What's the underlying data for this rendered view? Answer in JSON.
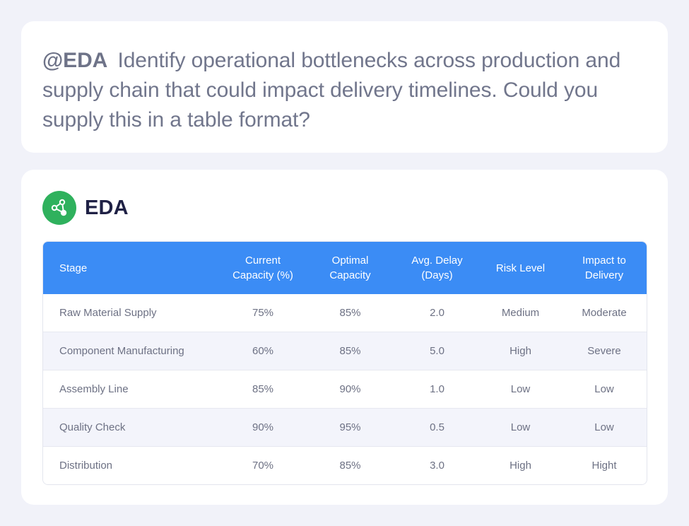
{
  "prompt": {
    "mention": "@EDA",
    "text": "Identify operational bottlenecks across production and supply chain that could impact delivery timelines. Could you supply this in a table format?"
  },
  "agent": {
    "name": "EDA",
    "icon": "network-nodes-icon",
    "color": "#2fb15d"
  },
  "table": {
    "header_color": "#3b8cf5",
    "headers": {
      "stage": "Stage",
      "current_line1": "Current",
      "current_line2": "Capacity (%)",
      "optimal_line1": "Optimal",
      "optimal_line2": "Capacity",
      "delay_line1": "Avg. Delay",
      "delay_line2": "(Days)",
      "risk": "Risk Level",
      "impact_line1": "Impact to",
      "impact_line2": "Delivery"
    },
    "rows": [
      {
        "stage": "Raw Material Supply",
        "current": "75%",
        "optimal": "85%",
        "delay": "2.0",
        "risk": "Medium",
        "impact": "Moderate"
      },
      {
        "stage": "Component Manufacturing",
        "current": "60%",
        "optimal": "85%",
        "delay": "5.0",
        "risk": "High",
        "impact": "Severe"
      },
      {
        "stage": "Assembly Line",
        "current": "85%",
        "optimal": "90%",
        "delay": "1.0",
        "risk": "Low",
        "impact": "Low"
      },
      {
        "stage": "Quality Check",
        "current": "90%",
        "optimal": "95%",
        "delay": "0.5",
        "risk": "Low",
        "impact": "Low"
      },
      {
        "stage": "Distribution",
        "current": "70%",
        "optimal": "85%",
        "delay": "3.0",
        "risk": "High",
        "impact": "Hight"
      }
    ]
  }
}
